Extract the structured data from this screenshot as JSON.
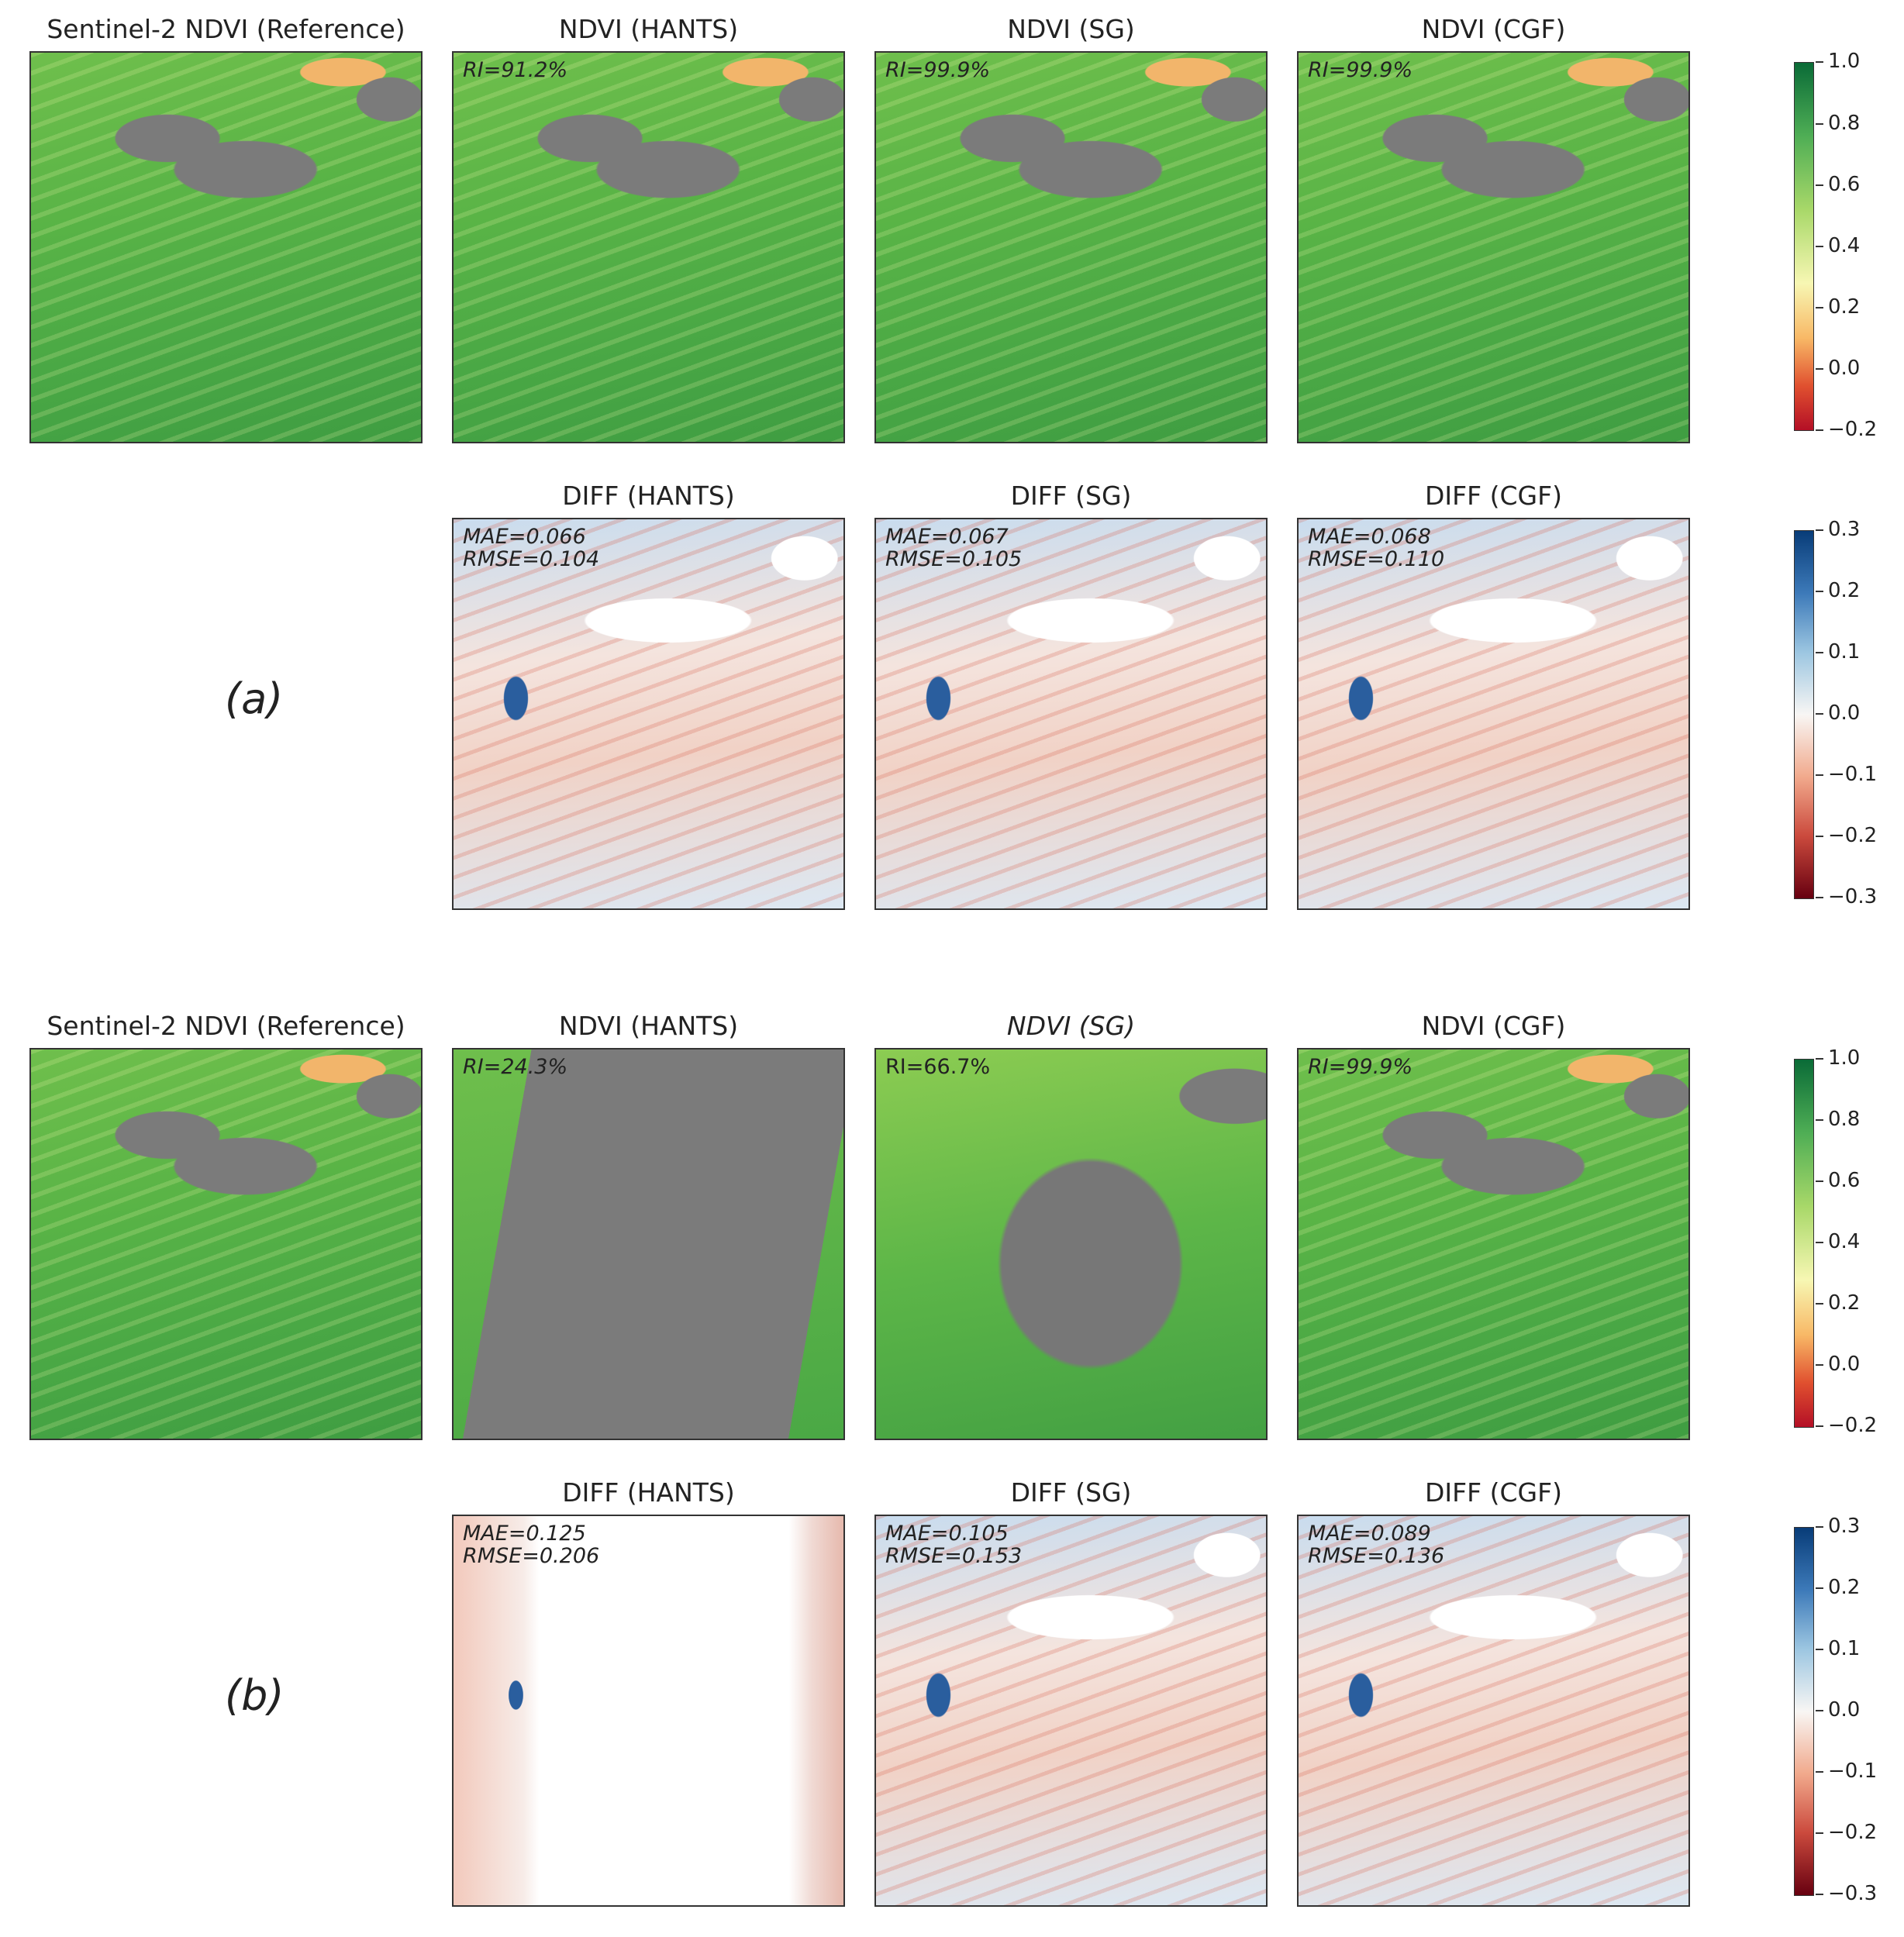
{
  "figure": {
    "a": {
      "label": "(a)",
      "ndvi_titles": [
        "Sentinel-2 NDVI (Reference)",
        "NDVI (HANTS)",
        "NDVI (SG)",
        "NDVI (CGF)"
      ],
      "ri": [
        "",
        "RI=91.2%",
        "RI=99.9%",
        "RI=99.9%"
      ],
      "diff_titles": [
        "DIFF (HANTS)",
        "DIFF (SG)",
        "DIFF (CGF)"
      ],
      "diff_stats": [
        "MAE=0.066\nRMSE=0.104",
        "MAE=0.067\nRMSE=0.105",
        "MAE=0.068\nRMSE=0.110"
      ]
    },
    "b": {
      "label": "(b)",
      "ndvi_titles": [
        "Sentinel-2 NDVI (Reference)",
        "NDVI (HANTS)",
        "NDVI (SG)",
        "NDVI (CGF)"
      ],
      "ri": [
        "",
        "RI=24.3%",
        "RI=66.7%",
        "RI=99.9%"
      ],
      "diff_titles": [
        "DIFF (HANTS)",
        "DIFF (SG)",
        "DIFF (CGF)"
      ],
      "diff_stats": [
        "MAE=0.125\nRMSE=0.206",
        "MAE=0.105\nRMSE=0.153",
        "MAE=0.089\nRMSE=0.136"
      ]
    },
    "ndvi_colorbar_ticks": [
      "1.0",
      "0.8",
      "0.6",
      "0.4",
      "0.2",
      "0.0",
      "−0.2"
    ],
    "diff_colorbar_ticks": [
      "0.3",
      "0.2",
      "0.1",
      "0.0",
      "−0.1",
      "−0.2",
      "−0.3"
    ],
    "colors": {
      "gap": "#7b7b7b",
      "ndvi_high": "#0a6b37",
      "ndvi_low": "#b40f26",
      "diff_pos": "#083c78",
      "diff_neg": "#670010"
    }
  }
}
